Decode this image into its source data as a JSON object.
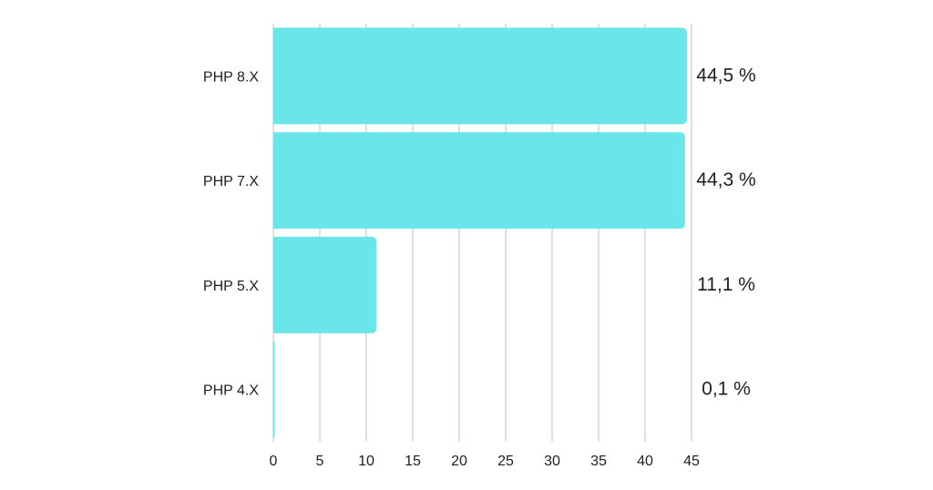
{
  "chart_data": {
    "type": "bar",
    "orientation": "horizontal",
    "categories": [
      "PHP 8.X",
      "PHP 7.X",
      "PHP 5.X",
      "PHP 4.X"
    ],
    "values": [
      44.5,
      44.3,
      11.1,
      0.1
    ],
    "value_labels": [
      "44,5 %",
      "44,3 %",
      "11,1 %",
      "0,1 %"
    ],
    "xlim": [
      0,
      45
    ],
    "x_ticks": [
      0,
      5,
      10,
      15,
      20,
      25,
      30,
      35,
      40,
      45
    ],
    "x_tick_labels": [
      "0",
      "5",
      "10",
      "15",
      "20",
      "25",
      "30",
      "35",
      "40",
      "45"
    ],
    "title": "",
    "xlabel": "",
    "ylabel": "",
    "grid": "vertical",
    "legend": "none",
    "colors": {
      "bar": "#6ae6ea",
      "grid": "#d6d6d6",
      "text": "#1f1f1f"
    }
  }
}
